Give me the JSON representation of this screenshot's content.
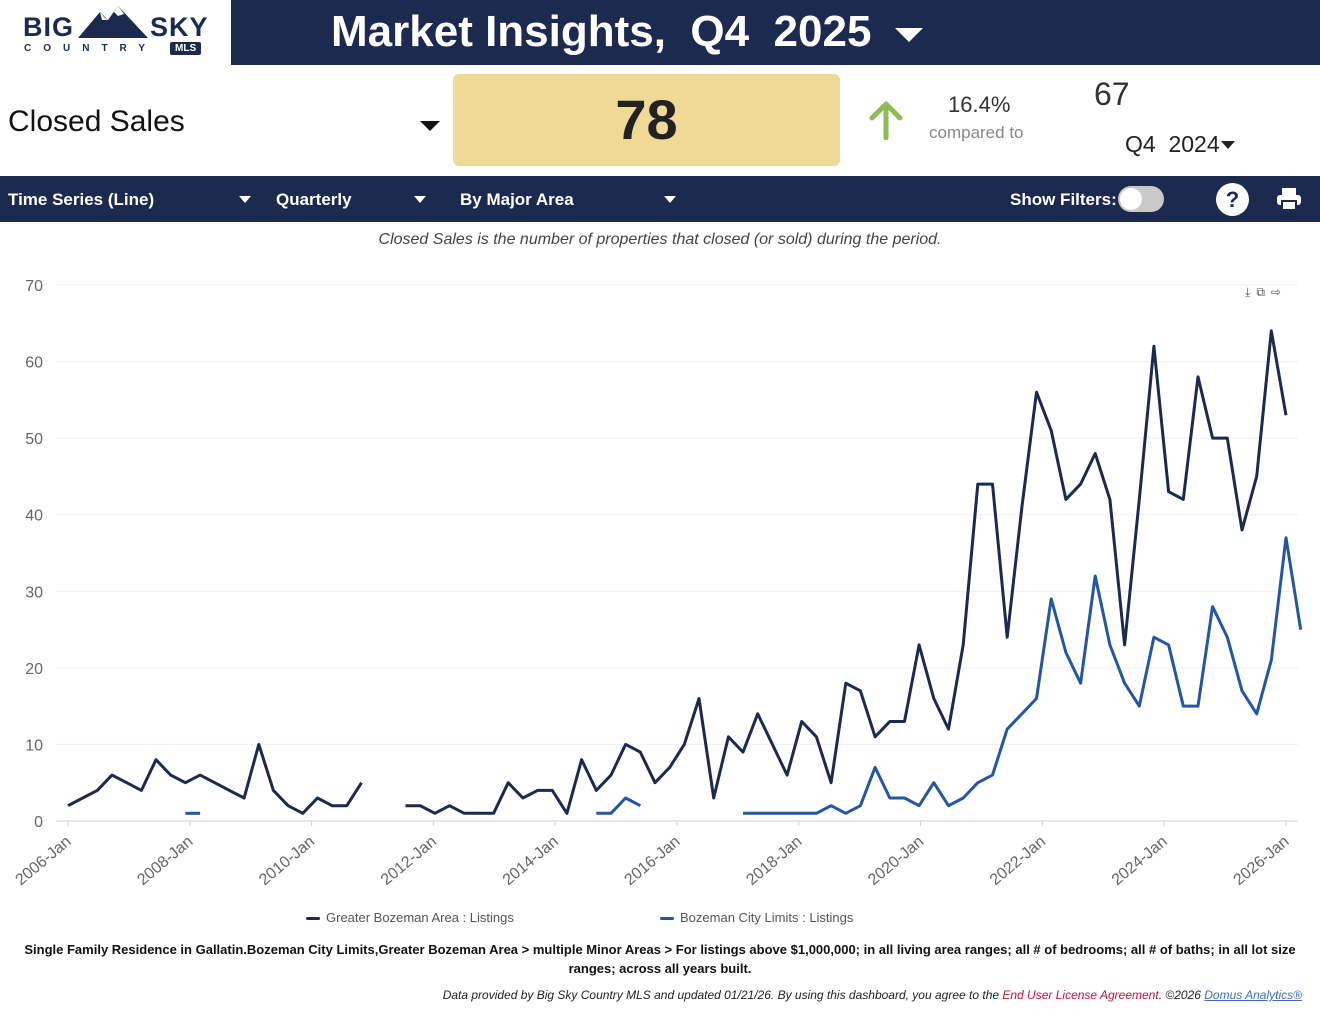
{
  "logo": {
    "big": "BIG",
    "sky": "SKY",
    "country": "COUNTRY",
    "mls": "MLS"
  },
  "header": {
    "title": "Market Insights,  Q4  2025"
  },
  "metric": {
    "name": "Closed Sales",
    "value": "78",
    "change_pct": "16.4%",
    "compared_label": "compared to",
    "prev_value": "67",
    "prev_period": "Q4  2024"
  },
  "toolbar": {
    "chart_type": "Time Series (Line)",
    "frequency": "Quarterly",
    "grouping": "By Major Area",
    "show_filters": "Show Filters:",
    "help": "?"
  },
  "description": "Closed Sales is the number of properties that closed (or sold) during the period.",
  "chart_data": {
    "type": "line",
    "ylim": [
      0,
      70
    ],
    "yticks": [
      0,
      10,
      20,
      30,
      40,
      50,
      60,
      70
    ],
    "xticks": [
      "2006-Jan",
      "2008-Jan",
      "2010-Jan",
      "2012-Jan",
      "2014-Jan",
      "2016-Jan",
      "2018-Jan",
      "2020-Jan",
      "2022-Jan",
      "2024-Jan",
      "2026-Jan"
    ],
    "x_start": "2006-Q1",
    "x_end": "2026-Q1",
    "series": [
      {
        "name": "Greater Bozeman Area : Listings",
        "color": "#1b2a4e",
        "values": [
          2,
          3,
          4,
          6,
          5,
          4,
          8,
          6,
          5,
          6,
          5,
          4,
          3,
          10,
          4,
          2,
          1,
          3,
          2,
          2,
          5,
          null,
          null,
          2,
          2,
          1,
          2,
          1,
          1,
          1,
          5,
          3,
          4,
          4,
          1,
          8,
          4,
          6,
          10,
          9,
          5,
          7,
          10,
          16,
          3,
          11,
          9,
          14,
          10,
          6,
          13,
          11,
          5,
          18,
          17,
          11,
          13,
          13,
          23,
          16,
          12,
          23,
          44,
          44,
          24,
          41,
          56,
          51,
          42,
          44,
          48,
          42,
          23,
          42,
          62,
          43,
          42,
          58,
          50,
          50,
          38,
          45,
          64,
          53
        ]
      },
      {
        "name": "Bozeman City Limits : Listings",
        "color": "#2456a4",
        "values": [
          null,
          null,
          null,
          null,
          null,
          null,
          null,
          null,
          null,
          null,
          null,
          null,
          null,
          null,
          null,
          null,
          null,
          null,
          null,
          null,
          null,
          null,
          null,
          null,
          null,
          null,
          null,
          null,
          null,
          null,
          null,
          null,
          null,
          null,
          null,
          null,
          null,
          null,
          null,
          null,
          null,
          null,
          null,
          null,
          null,
          null,
          null,
          null,
          null,
          null,
          null,
          null,
          null,
          null,
          null,
          null,
          null,
          null,
          null,
          null,
          null,
          null,
          null,
          null,
          null,
          null,
          null,
          null,
          null,
          null,
          null,
          null,
          null,
          null,
          null,
          null,
          null,
          null,
          null,
          null,
          null,
          null,
          null,
          null
        ]
      }
    ],
    "series2_points": [
      [
        8,
        1
      ],
      [
        9,
        1
      ],
      [
        36,
        1
      ],
      [
        37,
        1
      ],
      [
        38,
        3
      ],
      [
        39,
        2
      ],
      [
        46,
        1
      ],
      [
        47,
        1
      ],
      [
        48,
        1
      ],
      [
        49,
        1
      ],
      [
        50,
        1
      ],
      [
        51,
        1
      ],
      [
        52,
        2
      ],
      [
        53,
        1
      ],
      [
        54,
        2
      ],
      [
        55,
        7
      ],
      [
        56,
        3
      ],
      [
        57,
        3
      ],
      [
        58,
        2
      ],
      [
        59,
        5
      ],
      [
        60,
        2
      ],
      [
        61,
        3
      ],
      [
        62,
        5
      ],
      [
        63,
        6
      ],
      [
        64,
        12
      ],
      [
        65,
        14
      ],
      [
        66,
        16
      ],
      [
        67,
        29
      ],
      [
        68,
        22
      ],
      [
        69,
        18
      ],
      [
        70,
        32
      ],
      [
        71,
        23
      ],
      [
        72,
        18
      ],
      [
        73,
        15
      ],
      [
        74,
        24
      ],
      [
        75,
        23
      ],
      [
        76,
        15
      ],
      [
        77,
        15
      ],
      [
        78,
        28
      ],
      [
        79,
        24
      ],
      [
        80,
        17
      ],
      [
        81,
        14
      ],
      [
        82,
        21
      ],
      [
        83,
        37
      ],
      [
        84,
        25
      ]
    ]
  },
  "filters_text": "Single Family Residence in Gallatin.Bozeman City Limits,Greater Bozeman Area > multiple Minor Areas > For listings above $1,000,000; in all living area ranges; all # of bedrooms; all # of baths; in all lot size ranges; across all years built.",
  "footer": {
    "text": "Data provided by Big Sky Country MLS and updated 01/21/26.  By using this dashboard, you agree to the ",
    "eula": "End User License Agreement",
    "copyright": ".  ©2026 ",
    "domus": "Domus Analytics®"
  }
}
